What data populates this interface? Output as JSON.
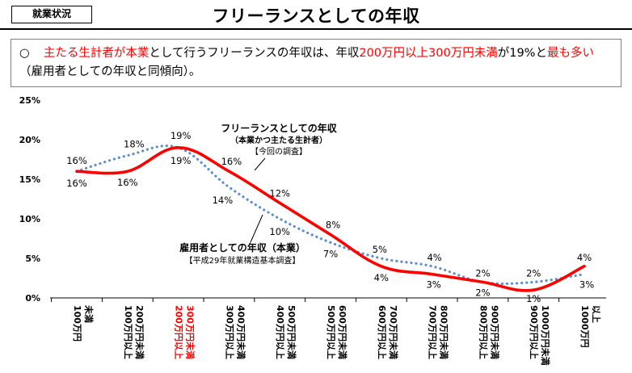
{
  "header": {
    "badge": "就業状況",
    "title": "フリーランスとしての年収"
  },
  "summary": {
    "bullet": "○",
    "parts": [
      {
        "text": "主たる生計者が本業",
        "hl": true
      },
      {
        "text": "として行うフリーランスの年収は、年収",
        "hl": false
      },
      {
        "text": "200万円以上300万円未満",
        "hl": true
      },
      {
        "text": "が19%と",
        "hl": false
      },
      {
        "text": "最も多い",
        "hl": true
      },
      {
        "text": "（雇用者としての年収と同傾向）。",
        "hl": false
      }
    ]
  },
  "chart_data": {
    "type": "line",
    "ylim": [
      0,
      25
    ],
    "yticks": [
      "0%",
      "5%",
      "10%",
      "15%",
      "20%",
      "25%"
    ],
    "categories": [
      [
        "100万円",
        "未満"
      ],
      [
        "100万円以上",
        "200万円未満"
      ],
      [
        "200万円以上",
        "300万円未満"
      ],
      [
        "300万円以上",
        "400万円未満"
      ],
      [
        "400万円以上",
        "500万円未満"
      ],
      [
        "500万円以上",
        "600万円未満"
      ],
      [
        "600万円以上",
        "700万円未満"
      ],
      [
        "700万円以上",
        "800万円未満"
      ],
      [
        "800万円以上",
        "900万円未満"
      ],
      [
        "900万円以上",
        "1000万円未満"
      ],
      [
        "1000万円",
        "以上"
      ]
    ],
    "highlight_category": 2,
    "series": [
      {
        "name": "フリーランスとしての年収",
        "style": "solid",
        "color": "#ff0000",
        "values": [
          16,
          16,
          19,
          16,
          12,
          8,
          4,
          3,
          2,
          1,
          4
        ],
        "labels": [
          "16%",
          "16%",
          "19%",
          "16%",
          "12%",
          "8%",
          "4%",
          "3%",
          "2%",
          "1%",
          "4%"
        ]
      },
      {
        "name": "雇用者としての年収",
        "style": "dotted",
        "color": "#5b8fd0",
        "values": [
          16,
          18,
          19,
          14,
          10,
          7,
          5,
          4,
          2,
          2,
          3
        ],
        "labels": [
          "16%",
          "18%",
          "19%",
          "14%",
          "10%",
          "7%",
          "5%",
          "4%",
          "2%",
          "2%",
          "3%"
        ]
      }
    ],
    "annotations": {
      "freelance": {
        "title": "フリーランスとしての年収",
        "sub1": "（本業かつ主たる生計者）",
        "sub2": "【今回の調査】"
      },
      "employee": {
        "title": "雇用者としての年収（本業）",
        "sub1": "【平成29年就業構造基本調査】"
      }
    }
  }
}
